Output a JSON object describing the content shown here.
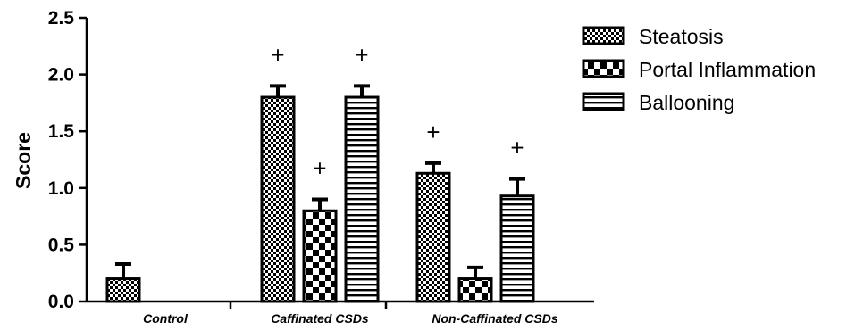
{
  "chart_data": {
    "type": "bar",
    "title": "",
    "xlabel": "",
    "ylabel": "Score",
    "ylim": [
      0,
      2.5
    ],
    "yticks": [
      "0.0",
      "0.5",
      "1.0",
      "1.5",
      "2.0",
      "2.5"
    ],
    "categories": [
      "Control",
      "Caffinated CSDs",
      "Non-Caffinated CSDs"
    ],
    "series": [
      {
        "name": "Steatosis",
        "pattern": "fine-checker",
        "values": [
          0.2,
          1.8,
          1.13
        ],
        "errors": [
          0.13,
          0.1,
          0.09
        ],
        "annotations": [
          "",
          "+",
          "+"
        ]
      },
      {
        "name": "Portal Inflammation",
        "pattern": "coarse-checker",
        "values": [
          0,
          0.8,
          0.2
        ],
        "errors": [
          0,
          0.1,
          0.1
        ],
        "annotations": [
          "",
          "+",
          ""
        ]
      },
      {
        "name": "Ballooning",
        "pattern": "horizontal-stripes",
        "values": [
          0,
          1.8,
          0.93
        ],
        "errors": [
          0,
          0.1,
          0.15
        ],
        "annotations": [
          "",
          "+",
          "+"
        ]
      }
    ],
    "legend_position": "top-right",
    "grid": false,
    "colors": {
      "ink": "#000000",
      "fill": "#ffffff"
    }
  }
}
